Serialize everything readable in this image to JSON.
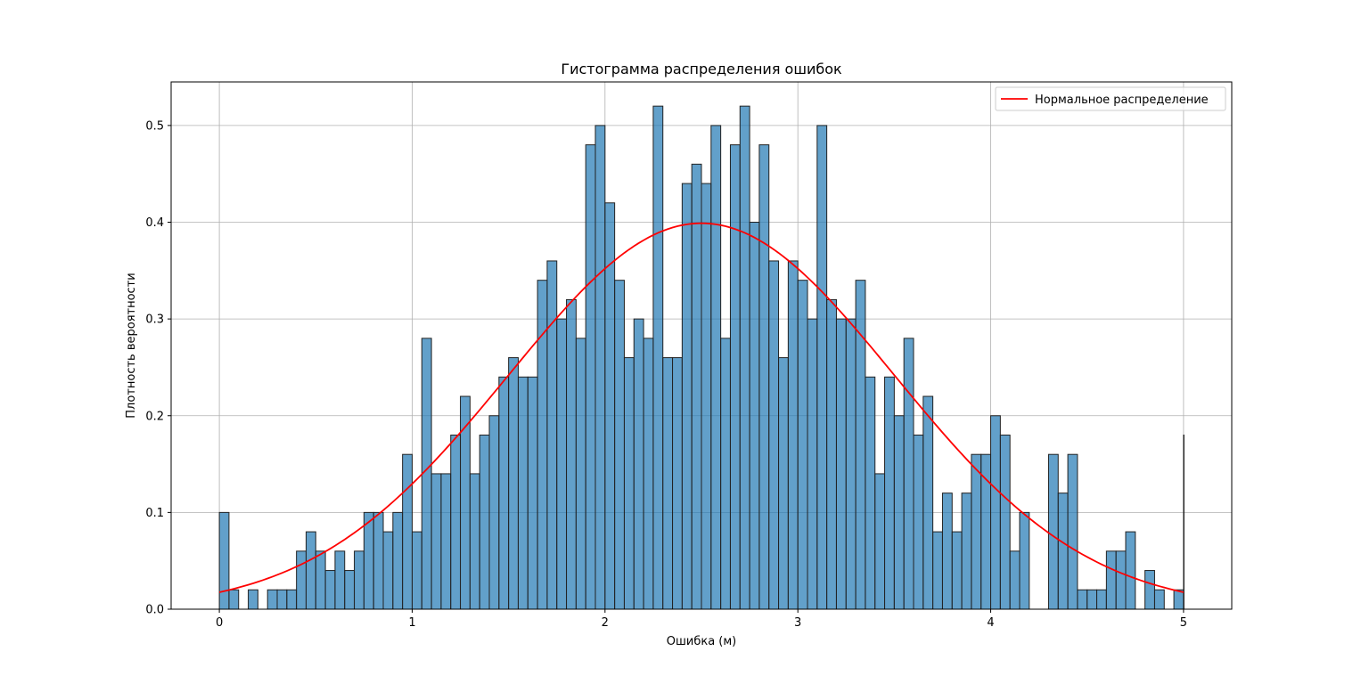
{
  "chart_data": {
    "type": "bar",
    "title": "Гистограмма распределения ошибок",
    "xlabel": "Ошибка (м)",
    "ylabel": "Плотность вероятности",
    "xlim": [
      -0.25,
      5.25
    ],
    "ylim": [
      0,
      0.545
    ],
    "xticks": [
      0,
      1,
      2,
      3,
      4,
      5
    ],
    "xtick_labels": [
      "0",
      "1",
      "2",
      "3",
      "4",
      "5"
    ],
    "yticks": [
      0.0,
      0.1,
      0.2,
      0.3,
      0.4,
      0.5
    ],
    "ytick_labels": [
      "0.0",
      "0.1",
      "0.2",
      "0.3",
      "0.4",
      "0.5"
    ],
    "grid": true,
    "legend_position": "top-right",
    "bin_range": [
      0,
      5
    ],
    "bin_width": 0.05,
    "series": [
      {
        "type": "bar",
        "color": "#1f77b4",
        "edge_color": "#222222",
        "values": [
          0.1,
          0.02,
          0.0,
          0.02,
          0.0,
          0.02,
          0.02,
          0.02,
          0.06,
          0.08,
          0.06,
          0.04,
          0.06,
          0.04,
          0.06,
          0.1,
          0.1,
          0.08,
          0.1,
          0.16,
          0.08,
          0.28,
          0.14,
          0.14,
          0.18,
          0.22,
          0.14,
          0.18,
          0.2,
          0.24,
          0.26,
          0.24,
          0.24,
          0.34,
          0.36,
          0.3,
          0.32,
          0.28,
          0.48,
          0.5,
          0.42,
          0.34,
          0.26,
          0.3,
          0.28,
          0.52,
          0.26,
          0.26,
          0.44,
          0.46,
          0.44,
          0.5,
          0.28,
          0.48,
          0.52,
          0.4,
          0.48,
          0.36,
          0.26,
          0.36,
          0.34,
          0.3,
          0.5,
          0.32,
          0.3,
          0.3,
          0.34,
          0.24,
          0.14,
          0.24,
          0.2,
          0.28,
          0.18,
          0.22,
          0.08,
          0.12,
          0.08,
          0.12,
          0.16,
          0.16,
          0.2,
          0.18,
          0.06,
          0.1,
          0.0,
          0.0,
          0.16,
          0.12,
          0.16,
          0.02,
          0.02,
          0.02,
          0.06,
          0.06,
          0.08,
          0.0,
          0.04,
          0.02,
          0.0,
          0.02,
          0.18
        ]
      },
      {
        "type": "line",
        "name": "Нормальное распределение",
        "color": "#ff0000",
        "distribution": {
          "mean": 2.5,
          "std": 1.0
        },
        "x_range": [
          0,
          5
        ]
      }
    ]
  }
}
